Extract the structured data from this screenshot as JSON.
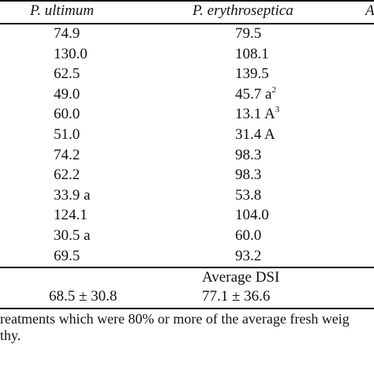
{
  "table": {
    "headers": {
      "col1": "P. ultimum",
      "col2": "P. erythroseptica",
      "col3_partial": "A"
    },
    "rows": [
      {
        "ultimum": "74.9",
        "erythroseptica": "79.5",
        "eryth_sup": ""
      },
      {
        "ultimum": "130.0",
        "erythroseptica": "108.1",
        "eryth_sup": ""
      },
      {
        "ultimum": "62.5",
        "erythroseptica": "139.5",
        "eryth_sup": ""
      },
      {
        "ultimum": "49.0",
        "erythroseptica": "45.7 a",
        "eryth_sup": "2"
      },
      {
        "ultimum": "60.0",
        "erythroseptica": "13.1 A",
        "eryth_sup": "3"
      },
      {
        "ultimum": "51.0",
        "erythroseptica": "31.4 A",
        "eryth_sup": ""
      },
      {
        "ultimum": "74.2",
        "erythroseptica": "98.3",
        "eryth_sup": ""
      },
      {
        "ultimum": "62.2",
        "erythroseptica": "98.3",
        "eryth_sup": ""
      },
      {
        "ultimum": "33.9 a",
        "erythroseptica": "53.8",
        "eryth_sup": ""
      },
      {
        "ultimum": "124.1",
        "erythroseptica": "104.0",
        "eryth_sup": ""
      },
      {
        "ultimum": "30.5 a",
        "erythroseptica": "60.0",
        "eryth_sup": ""
      },
      {
        "ultimum": "69.5",
        "erythroseptica": "93.2",
        "eryth_sup": ""
      }
    ],
    "average_label": "Average DSI",
    "averages": {
      "ultimum": "68.5 ± 30.8",
      "erythroseptica": "77.1 ± 36.6"
    }
  },
  "footnotes": {
    "line1": "reatments which were 80% or more of the average fresh weig",
    "line2": "thy."
  }
}
